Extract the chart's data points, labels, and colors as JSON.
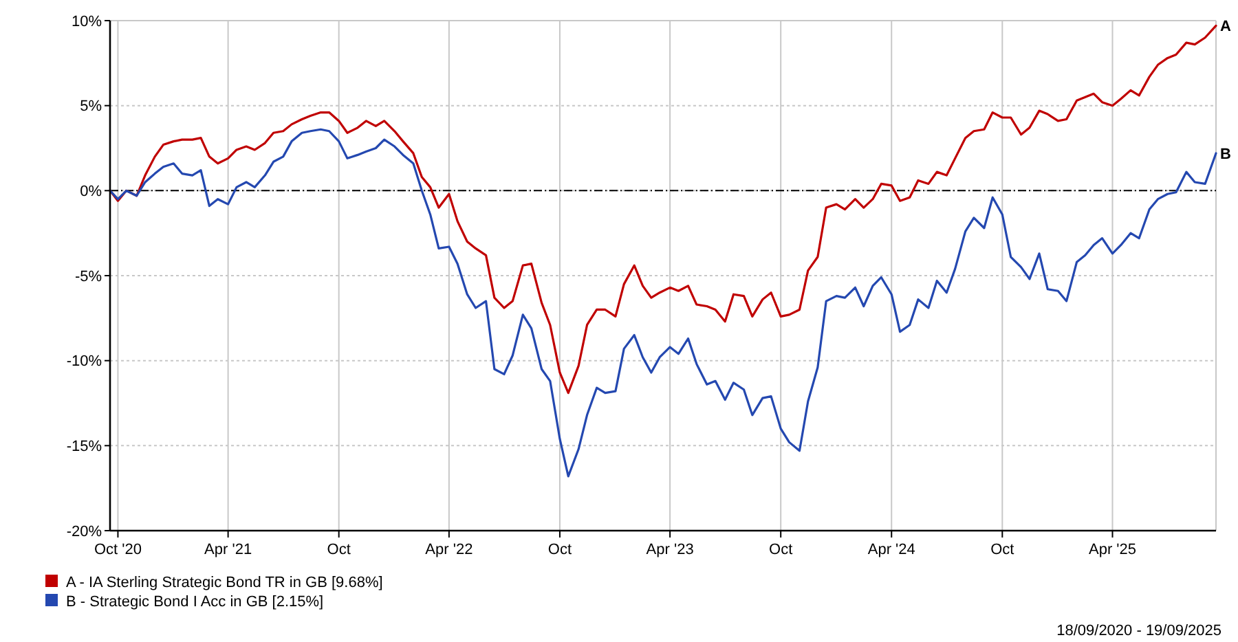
{
  "chart_data": {
    "type": "line",
    "x": [
      "2020-09-18",
      "2020-10-01",
      "2020-10-15",
      "2020-11-01",
      "2020-11-15",
      "2020-12-01",
      "2020-12-15",
      "2021-01-01",
      "2021-01-15",
      "2021-02-01",
      "2021-02-15",
      "2021-03-01",
      "2021-03-15",
      "2021-04-01",
      "2021-04-15",
      "2021-05-01",
      "2021-05-15",
      "2021-06-01",
      "2021-06-15",
      "2021-07-01",
      "2021-07-15",
      "2021-08-01",
      "2021-08-15",
      "2021-09-01",
      "2021-09-15",
      "2021-10-01",
      "2021-10-15",
      "2021-11-01",
      "2021-11-15",
      "2021-12-01",
      "2021-12-15",
      "2022-01-01",
      "2022-01-15",
      "2022-02-01",
      "2022-02-15",
      "2022-03-01",
      "2022-03-15",
      "2022-04-01",
      "2022-04-15",
      "2022-05-01",
      "2022-05-15",
      "2022-06-01",
      "2022-06-15",
      "2022-07-01",
      "2022-07-15",
      "2022-08-01",
      "2022-08-15",
      "2022-09-01",
      "2022-09-15",
      "2022-10-01",
      "2022-10-15",
      "2022-11-01",
      "2022-11-15",
      "2022-12-01",
      "2022-12-15",
      "2023-01-01",
      "2023-01-15",
      "2023-02-01",
      "2023-02-15",
      "2023-03-01",
      "2023-03-15",
      "2023-04-01",
      "2023-04-15",
      "2023-05-01",
      "2023-05-15",
      "2023-06-01",
      "2023-06-15",
      "2023-07-01",
      "2023-07-15",
      "2023-08-01",
      "2023-08-15",
      "2023-09-01",
      "2023-09-15",
      "2023-10-01",
      "2023-10-15",
      "2023-11-01",
      "2023-11-15",
      "2023-12-01",
      "2023-12-15",
      "2024-01-01",
      "2024-01-15",
      "2024-02-01",
      "2024-02-15",
      "2024-03-01",
      "2024-03-15",
      "2024-04-01",
      "2024-04-15",
      "2024-05-01",
      "2024-05-15",
      "2024-06-01",
      "2024-06-15",
      "2024-07-01",
      "2024-07-15",
      "2024-08-01",
      "2024-08-15",
      "2024-09-01",
      "2024-09-15",
      "2024-10-01",
      "2024-10-15",
      "2024-11-01",
      "2024-11-15",
      "2024-12-01",
      "2024-12-15",
      "2025-01-01",
      "2025-01-15",
      "2025-02-01",
      "2025-02-15",
      "2025-03-01",
      "2025-03-15",
      "2025-04-01",
      "2025-04-15",
      "2025-05-01",
      "2025-05-15",
      "2025-06-01",
      "2025-06-15",
      "2025-07-01",
      "2025-07-15",
      "2025-08-01",
      "2025-08-15",
      "2025-09-01",
      "2025-09-19"
    ],
    "series": [
      {
        "name": "A - IA Sterling Strategic Bond TR in GB [9.68%]",
        "color": "#c00000",
        "values": [
          0,
          -0.6,
          0.0,
          -0.3,
          0.9,
          2.0,
          2.7,
          2.9,
          3.0,
          3.0,
          3.1,
          2.0,
          1.6,
          1.9,
          2.4,
          2.6,
          2.4,
          2.8,
          3.4,
          3.5,
          3.9,
          4.2,
          4.4,
          4.6,
          4.6,
          4.1,
          3.4,
          3.7,
          4.1,
          3.8,
          4.1,
          3.5,
          2.9,
          2.2,
          0.8,
          0.2,
          -1.0,
          -0.2,
          -1.8,
          -3.0,
          -3.4,
          -3.8,
          -6.3,
          -6.9,
          -6.5,
          -4.4,
          -4.3,
          -6.6,
          -7.9,
          -10.7,
          -11.9,
          -10.3,
          -7.9,
          -7.0,
          -7.0,
          -7.4,
          -5.5,
          -4.4,
          -5.6,
          -6.3,
          -6.0,
          -5.7,
          -5.9,
          -5.6,
          -6.7,
          -6.8,
          -7.0,
          -7.7,
          -6.1,
          -6.2,
          -7.4,
          -6.4,
          -6.0,
          -7.4,
          -7.3,
          -7.0,
          -4.7,
          -3.9,
          -1.0,
          -0.8,
          -1.1,
          -0.5,
          -1.0,
          -0.5,
          0.4,
          0.3,
          -0.6,
          -0.4,
          0.6,
          0.4,
          1.1,
          0.9,
          1.9,
          3.1,
          3.5,
          3.6,
          4.6,
          4.3,
          4.3,
          3.3,
          3.7,
          4.7,
          4.5,
          4.1,
          4.2,
          5.3,
          5.5,
          5.7,
          5.2,
          5.0,
          5.4,
          5.9,
          5.6,
          6.7,
          7.4,
          7.8,
          8.0,
          8.7,
          8.6,
          9.0,
          9.7
        ]
      },
      {
        "name": "B - Strategic Bond I Acc in GB [2.15%]",
        "color": "#2448b0",
        "values": [
          0,
          -0.5,
          0.0,
          -0.3,
          0.5,
          1.0,
          1.4,
          1.6,
          1.0,
          0.9,
          1.2,
          -0.9,
          -0.5,
          -0.8,
          0.2,
          0.5,
          0.2,
          0.9,
          1.7,
          2.0,
          2.9,
          3.4,
          3.5,
          3.6,
          3.5,
          2.9,
          1.9,
          2.1,
          2.3,
          2.5,
          3.0,
          2.6,
          2.1,
          1.6,
          0.0,
          -1.4,
          -3.4,
          -3.3,
          -4.3,
          -6.1,
          -6.9,
          -6.5,
          -10.5,
          -10.8,
          -9.7,
          -7.3,
          -8.1,
          -10.5,
          -11.2,
          -14.6,
          -16.8,
          -15.2,
          -13.2,
          -11.6,
          -11.9,
          -11.8,
          -9.3,
          -8.5,
          -9.8,
          -10.7,
          -9.8,
          -9.2,
          -9.6,
          -8.7,
          -10.2,
          -11.4,
          -11.2,
          -12.3,
          -11.3,
          -11.7,
          -13.2,
          -12.2,
          -12.1,
          -14.0,
          -14.8,
          -15.3,
          -12.4,
          -10.4,
          -6.5,
          -6.2,
          -6.3,
          -5.7,
          -6.8,
          -5.6,
          -5.1,
          -6.1,
          -8.3,
          -7.9,
          -6.4,
          -6.9,
          -5.3,
          -6.0,
          -4.6,
          -2.4,
          -1.6,
          -2.2,
          -0.4,
          -1.4,
          -3.9,
          -4.5,
          -5.2,
          -3.7,
          -5.8,
          -5.9,
          -6.5,
          -4.2,
          -3.8,
          -3.2,
          -2.8,
          -3.7,
          -3.2,
          -2.5,
          -2.8,
          -1.1,
          -0.5,
          -0.2,
          -0.1,
          1.1,
          0.5,
          0.4,
          2.2
        ]
      }
    ],
    "xlim": [
      "2020-09-18",
      "2025-09-19"
    ],
    "xticks": [
      {
        "value": "2020-10-01",
        "label": "Oct '20"
      },
      {
        "value": "2021-04-01",
        "label": "Apr '21"
      },
      {
        "value": "2021-10-01",
        "label": "Oct"
      },
      {
        "value": "2022-04-01",
        "label": "Apr '22"
      },
      {
        "value": "2022-10-01",
        "label": "Oct"
      },
      {
        "value": "2023-04-01",
        "label": "Apr '23"
      },
      {
        "value": "2023-10-01",
        "label": "Oct"
      },
      {
        "value": "2024-04-01",
        "label": "Apr '24"
      },
      {
        "value": "2024-10-01",
        "label": "Oct"
      },
      {
        "value": "2025-04-01",
        "label": "Apr '25"
      }
    ],
    "ylim": [
      -20,
      10
    ],
    "yticks": [
      {
        "value": -20,
        "label": "-20%"
      },
      {
        "value": -15,
        "label": "-15%"
      },
      {
        "value": -10,
        "label": "-10%"
      },
      {
        "value": -5,
        "label": "-5%"
      },
      {
        "value": 0,
        "label": "0%"
      },
      {
        "value": 5,
        "label": "5%"
      },
      {
        "value": 10,
        "label": "10%"
      }
    ],
    "grid": true,
    "legend": "bottom left",
    "marker": "none",
    "line_style": "solid",
    "ref_lines": [
      {
        "axis": "y",
        "value": 0,
        "color": "#000000",
        "line_style": "dashed"
      }
    ],
    "annotations": [
      {
        "text": "A",
        "x": "2025-09-19",
        "y": 9.7
      },
      {
        "text": "B",
        "x": "2025-09-19",
        "y": 2.2
      },
      "18/09/2020 - 19/09/2025"
    ]
  }
}
